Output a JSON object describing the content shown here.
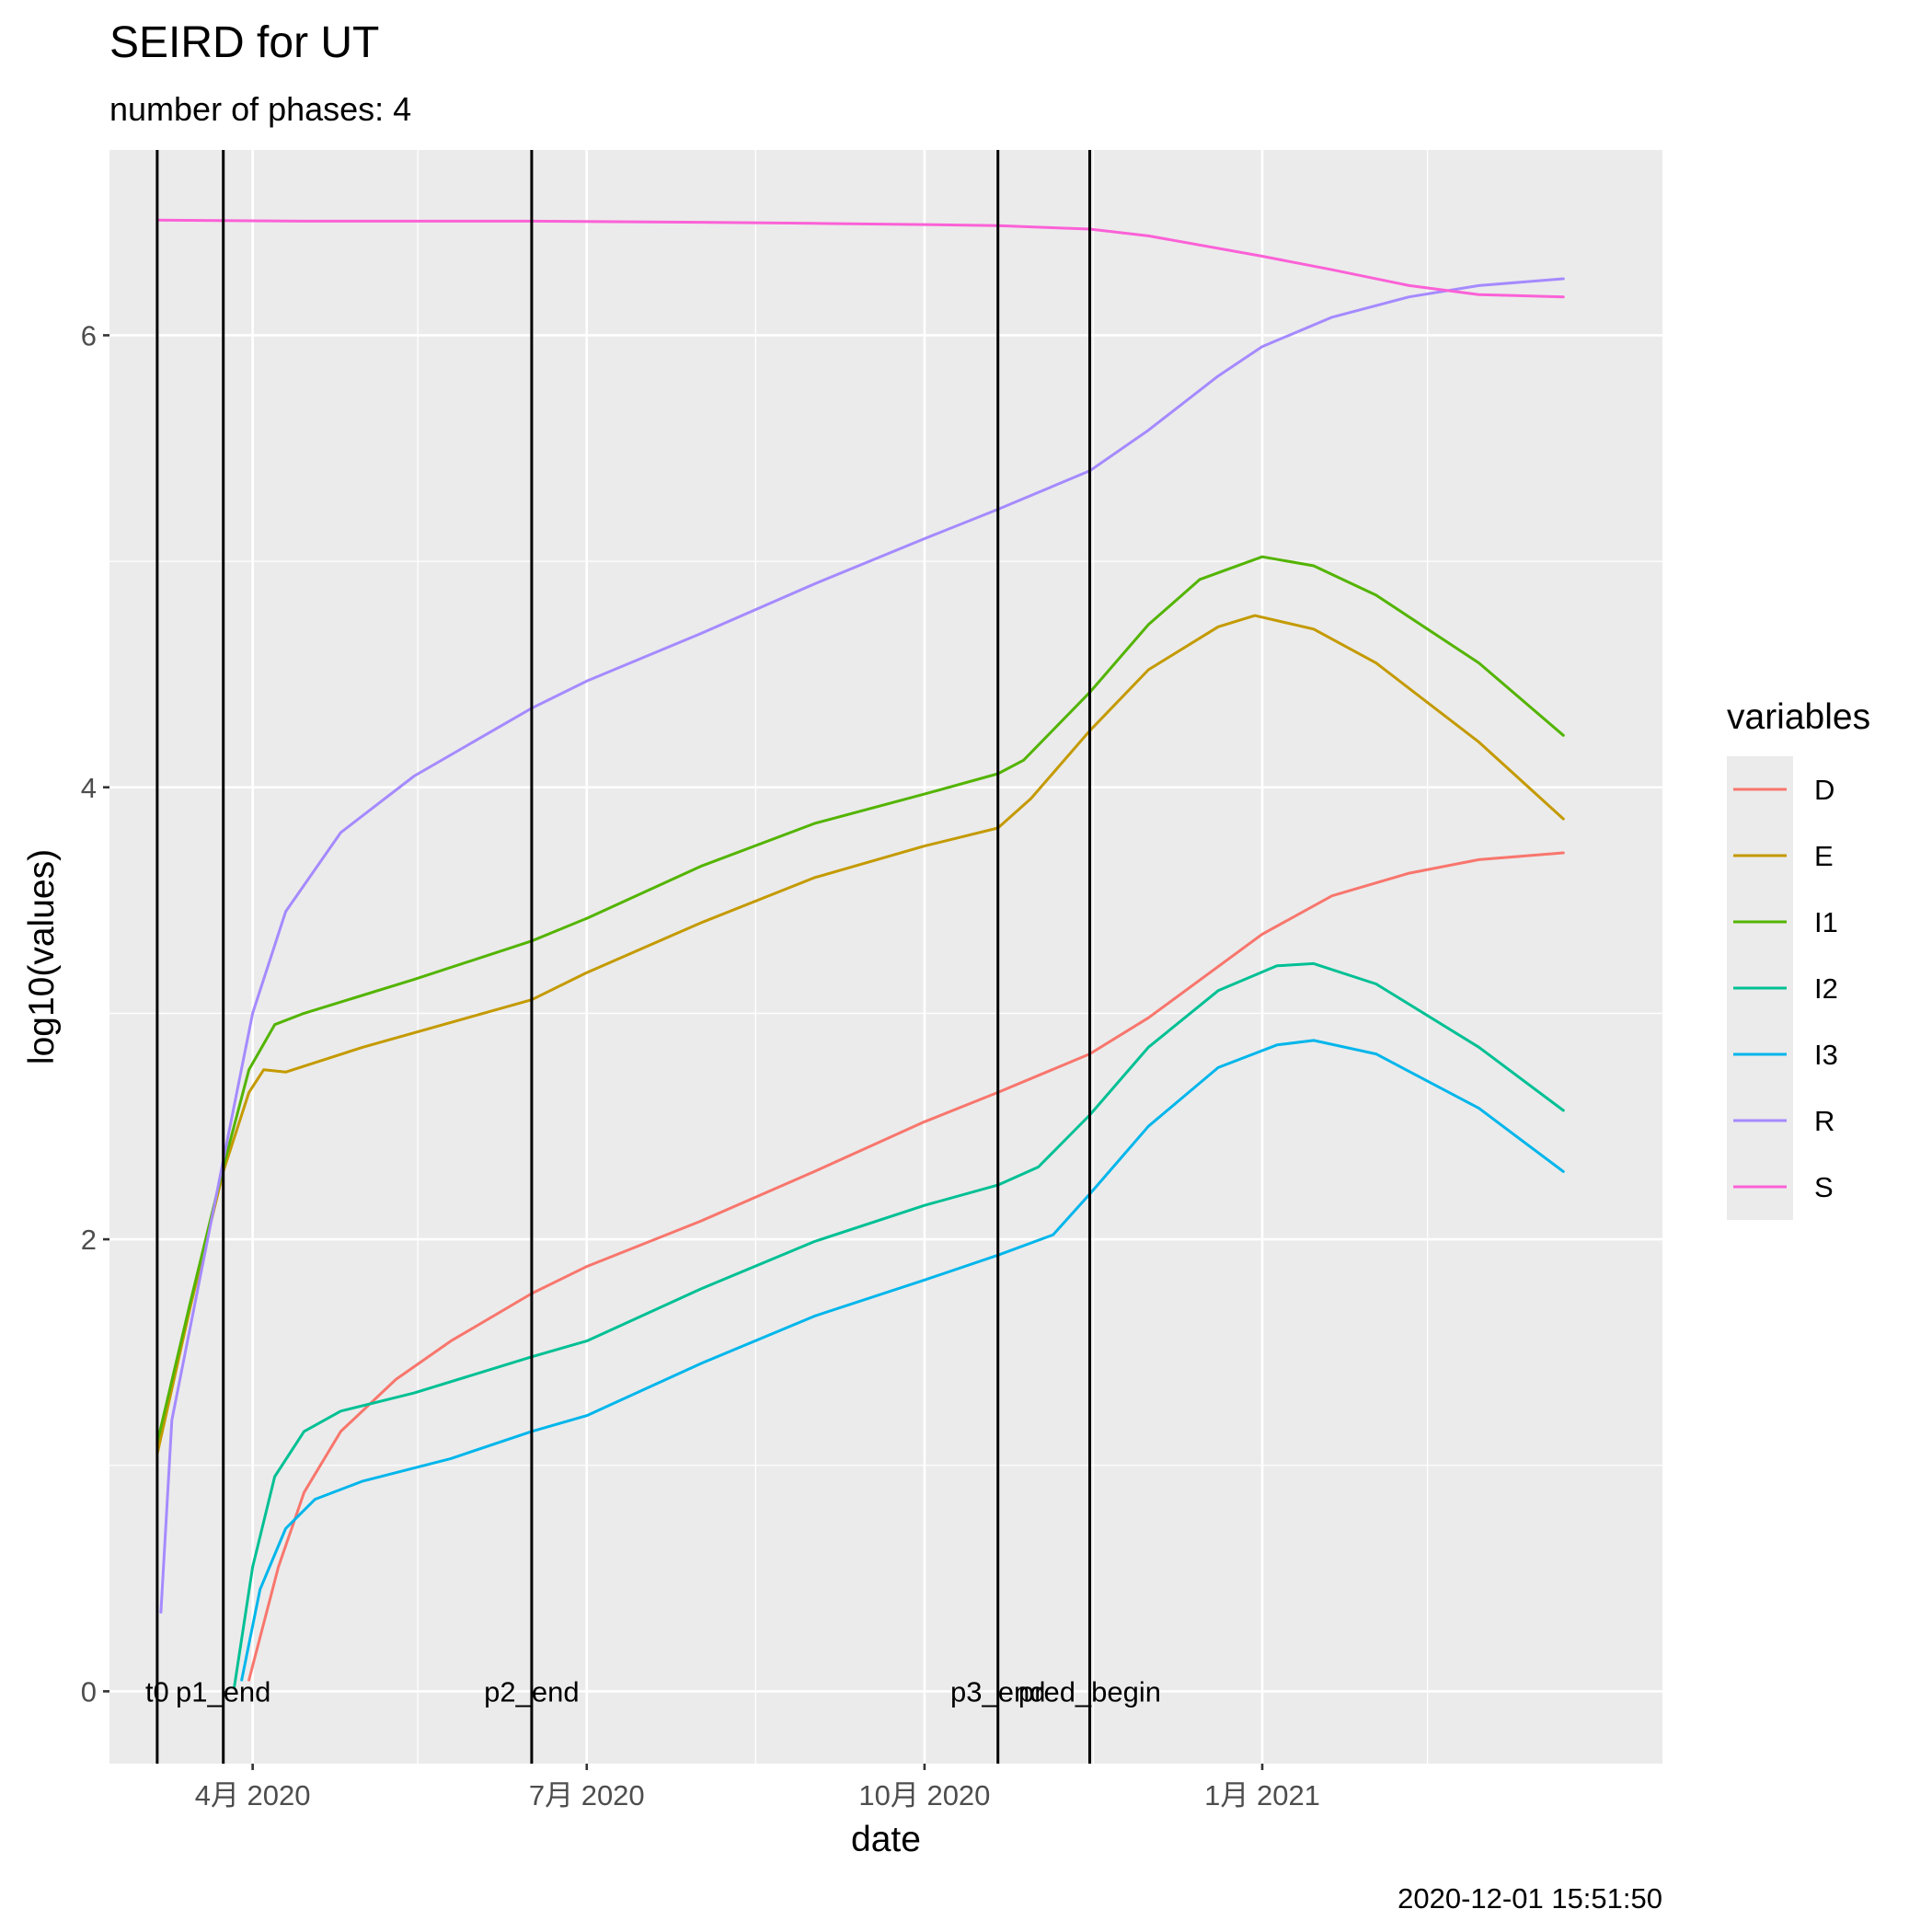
{
  "chart_data": {
    "type": "line",
    "title": "SEIRD for UT",
    "subtitle": "number of phases: 4",
    "xlabel": "date",
    "ylabel": "log10(values)",
    "caption": "2020-12-01 15:51:50",
    "xlim": [
      "2020-02-22",
      "2021-04-20"
    ],
    "ylim": [
      -0.32,
      6.82
    ],
    "x_ticks": [
      {
        "date": "2020-04-01",
        "label": "4月 2020"
      },
      {
        "date": "2020-07-01",
        "label": "7月 2020"
      },
      {
        "date": "2020-10-01",
        "label": "10月 2020"
      },
      {
        "date": "2021-01-01",
        "label": "1月 2021"
      }
    ],
    "y_ticks": [
      0,
      2,
      4,
      6
    ],
    "grid": true,
    "legend": {
      "title": "variables",
      "position": "right"
    },
    "phase_lines": [
      {
        "date": "2020-03-06",
        "label": "t0"
      },
      {
        "date": "2020-03-24",
        "label": "p1_end"
      },
      {
        "date": "2020-06-16",
        "label": "p2_end"
      },
      {
        "date": "2020-10-21",
        "label": "p3_end"
      },
      {
        "date": "2020-11-15",
        "label": "pred_begin"
      }
    ],
    "series": [
      {
        "name": "D",
        "color": "#F8766D",
        "points": [
          [
            "2020-03-31",
            0.05
          ],
          [
            "2020-04-08",
            0.55
          ],
          [
            "2020-04-15",
            0.88
          ],
          [
            "2020-04-25",
            1.15
          ],
          [
            "2020-05-10",
            1.38
          ],
          [
            "2020-05-25",
            1.55
          ],
          [
            "2020-06-16",
            1.76
          ],
          [
            "2020-07-01",
            1.88
          ],
          [
            "2020-08-01",
            2.08
          ],
          [
            "2020-09-01",
            2.3
          ],
          [
            "2020-10-01",
            2.52
          ],
          [
            "2020-10-21",
            2.65
          ],
          [
            "2020-11-15",
            2.82
          ],
          [
            "2020-12-01",
            2.98
          ],
          [
            "2021-01-01",
            3.35
          ],
          [
            "2021-01-20",
            3.52
          ],
          [
            "2021-02-10",
            3.62
          ],
          [
            "2021-03-01",
            3.68
          ],
          [
            "2021-03-24",
            3.71
          ]
        ]
      },
      {
        "name": "E",
        "color": "#C49A00",
        "points": [
          [
            "2020-03-06",
            1.05
          ],
          [
            "2020-03-15",
            1.7
          ],
          [
            "2020-03-24",
            2.3
          ],
          [
            "2020-03-31",
            2.65
          ],
          [
            "2020-04-04",
            2.75
          ],
          [
            "2020-04-10",
            2.74
          ],
          [
            "2020-05-01",
            2.85
          ],
          [
            "2020-06-16",
            3.06
          ],
          [
            "2020-07-01",
            3.18
          ],
          [
            "2020-08-01",
            3.4
          ],
          [
            "2020-09-01",
            3.6
          ],
          [
            "2020-10-01",
            3.74
          ],
          [
            "2020-10-21",
            3.82
          ],
          [
            "2020-10-30",
            3.95
          ],
          [
            "2020-11-15",
            4.25
          ],
          [
            "2020-12-01",
            4.52
          ],
          [
            "2020-12-20",
            4.71
          ],
          [
            "2020-12-30",
            4.76
          ],
          [
            "2021-01-15",
            4.7
          ],
          [
            "2021-02-01",
            4.55
          ],
          [
            "2021-03-01",
            4.2
          ],
          [
            "2021-03-24",
            3.86
          ]
        ]
      },
      {
        "name": "I1",
        "color": "#53B400",
        "points": [
          [
            "2020-03-06",
            1.1
          ],
          [
            "2020-03-15",
            1.72
          ],
          [
            "2020-03-24",
            2.32
          ],
          [
            "2020-03-31",
            2.75
          ],
          [
            "2020-04-07",
            2.95
          ],
          [
            "2020-04-15",
            3.0
          ],
          [
            "2020-05-15",
            3.15
          ],
          [
            "2020-06-16",
            3.32
          ],
          [
            "2020-07-01",
            3.42
          ],
          [
            "2020-08-01",
            3.65
          ],
          [
            "2020-09-01",
            3.84
          ],
          [
            "2020-10-01",
            3.97
          ],
          [
            "2020-10-21",
            4.06
          ],
          [
            "2020-10-28",
            4.12
          ],
          [
            "2020-11-15",
            4.42
          ],
          [
            "2020-12-01",
            4.72
          ],
          [
            "2020-12-15",
            4.92
          ],
          [
            "2021-01-01",
            5.02
          ],
          [
            "2021-01-15",
            4.98
          ],
          [
            "2021-02-01",
            4.85
          ],
          [
            "2021-03-01",
            4.55
          ],
          [
            "2021-03-24",
            4.23
          ]
        ]
      },
      {
        "name": "I2",
        "color": "#00C094",
        "points": [
          [
            "2020-03-27",
            0.02
          ],
          [
            "2020-04-01",
            0.55
          ],
          [
            "2020-04-07",
            0.95
          ],
          [
            "2020-04-15",
            1.15
          ],
          [
            "2020-04-25",
            1.24
          ],
          [
            "2020-05-15",
            1.32
          ],
          [
            "2020-06-16",
            1.48
          ],
          [
            "2020-07-01",
            1.55
          ],
          [
            "2020-08-01",
            1.78
          ],
          [
            "2020-09-01",
            1.99
          ],
          [
            "2020-10-01",
            2.15
          ],
          [
            "2020-10-21",
            2.24
          ],
          [
            "2020-11-01",
            2.32
          ],
          [
            "2020-11-15",
            2.55
          ],
          [
            "2020-12-01",
            2.85
          ],
          [
            "2020-12-20",
            3.1
          ],
          [
            "2021-01-05",
            3.21
          ],
          [
            "2021-01-15",
            3.22
          ],
          [
            "2021-02-01",
            3.13
          ],
          [
            "2021-03-01",
            2.85
          ],
          [
            "2021-03-24",
            2.57
          ]
        ]
      },
      {
        "name": "I3",
        "color": "#00B6EB",
        "points": [
          [
            "2020-03-29",
            0.05
          ],
          [
            "2020-04-03",
            0.45
          ],
          [
            "2020-04-10",
            0.72
          ],
          [
            "2020-04-18",
            0.85
          ],
          [
            "2020-05-01",
            0.93
          ],
          [
            "2020-05-25",
            1.03
          ],
          [
            "2020-06-16",
            1.15
          ],
          [
            "2020-07-01",
            1.22
          ],
          [
            "2020-08-01",
            1.45
          ],
          [
            "2020-09-01",
            1.66
          ],
          [
            "2020-10-01",
            1.82
          ],
          [
            "2020-10-21",
            1.93
          ],
          [
            "2020-11-05",
            2.02
          ],
          [
            "2020-11-15",
            2.2
          ],
          [
            "2020-12-01",
            2.5
          ],
          [
            "2020-12-20",
            2.76
          ],
          [
            "2021-01-05",
            2.86
          ],
          [
            "2021-01-15",
            2.88
          ],
          [
            "2021-02-01",
            2.82
          ],
          [
            "2021-03-01",
            2.58
          ],
          [
            "2021-03-24",
            2.3
          ]
        ]
      },
      {
        "name": "R",
        "color": "#A58AFF",
        "points": [
          [
            "2020-03-07",
            0.35
          ],
          [
            "2020-03-10",
            1.2
          ],
          [
            "2020-03-24",
            2.35
          ],
          [
            "2020-04-01",
            3.0
          ],
          [
            "2020-04-10",
            3.45
          ],
          [
            "2020-04-25",
            3.8
          ],
          [
            "2020-05-15",
            4.05
          ],
          [
            "2020-06-16",
            4.35
          ],
          [
            "2020-07-01",
            4.47
          ],
          [
            "2020-08-01",
            4.68
          ],
          [
            "2020-09-01",
            4.9
          ],
          [
            "2020-10-01",
            5.1
          ],
          [
            "2020-10-21",
            5.23
          ],
          [
            "2020-11-15",
            5.4
          ],
          [
            "2020-12-01",
            5.58
          ],
          [
            "2020-12-20",
            5.82
          ],
          [
            "2021-01-01",
            5.95
          ],
          [
            "2021-01-20",
            6.08
          ],
          [
            "2021-02-10",
            6.17
          ],
          [
            "2021-03-01",
            6.22
          ],
          [
            "2021-03-24",
            6.25
          ]
        ]
      },
      {
        "name": "S",
        "color": "#FB61D7",
        "points": [
          [
            "2020-03-06",
            6.51
          ],
          [
            "2020-04-15",
            6.505
          ],
          [
            "2020-06-16",
            6.505
          ],
          [
            "2020-08-01",
            6.5
          ],
          [
            "2020-09-01",
            6.495
          ],
          [
            "2020-10-01",
            6.49
          ],
          [
            "2020-10-21",
            6.485
          ],
          [
            "2020-11-15",
            6.47
          ],
          [
            "2020-12-01",
            6.44
          ],
          [
            "2021-01-01",
            6.35
          ],
          [
            "2021-01-20",
            6.29
          ],
          [
            "2021-02-10",
            6.22
          ],
          [
            "2021-03-01",
            6.18
          ],
          [
            "2021-03-24",
            6.17
          ]
        ]
      }
    ]
  }
}
